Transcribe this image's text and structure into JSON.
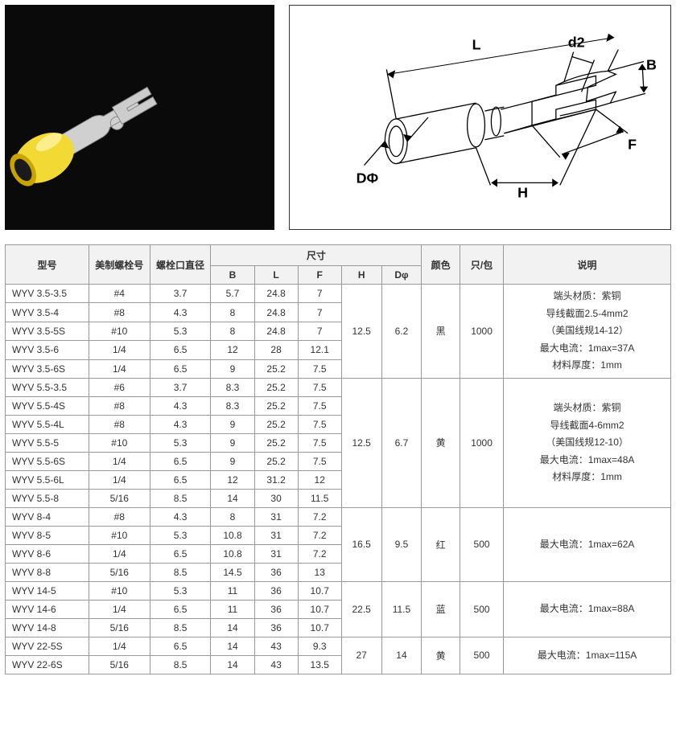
{
  "photo": {
    "bg": "#0a0a0a",
    "body_color": "#f2d933",
    "metal_color": "#d8d8d8",
    "highlight": "#ffffff"
  },
  "diagram": {
    "stroke": "#000000",
    "labels": {
      "L": "L",
      "d2": "d2",
      "B": "B",
      "F": "F",
      "H": "H",
      "D": "DΦ"
    },
    "fontsize": 16
  },
  "table": {
    "headers": {
      "model": "型号",
      "screw_us": "美制螺栓号",
      "bolt_dia": "螺栓口直径",
      "dims": "尺寸",
      "B": "B",
      "L": "L",
      "F": "F",
      "H": "H",
      "Dphi": "Dφ",
      "color": "颜色",
      "perpack": "只/包",
      "desc": "说明"
    },
    "col_widths": {
      "model": 96,
      "screw": 70,
      "bolt": 70,
      "B": 50,
      "L": 50,
      "F": 50,
      "H": 46,
      "Dphi": 46,
      "color": 44,
      "pack": 50,
      "desc": 192
    },
    "groups": [
      {
        "H": "12.5",
        "Dphi": "6.2",
        "color": "黑",
        "pack": "1000",
        "desc": [
          "端头材质：紫铜",
          "导线截面2.5-4mm2",
          "（美国线规14-12）",
          "最大电流：1max=37A",
          "材料厚度：1mm"
        ],
        "rows": [
          {
            "model": "WYV 3.5-3.5",
            "screw": "#4",
            "bolt": "3.7",
            "B": "5.7",
            "L": "24.8",
            "F": "7"
          },
          {
            "model": "WYV 3.5-4",
            "screw": "#8",
            "bolt": "4.3",
            "B": "8",
            "L": "24.8",
            "F": "7"
          },
          {
            "model": "WYV 3.5-5S",
            "screw": "#10",
            "bolt": "5.3",
            "B": "8",
            "L": "24.8",
            "F": "7"
          },
          {
            "model": "WYV 3.5-6",
            "screw": "1/4",
            "bolt": "6.5",
            "B": "12",
            "L": "28",
            "F": "12.1"
          },
          {
            "model": "WYV 3.5-6S",
            "screw": "1/4",
            "bolt": "6.5",
            "B": "9",
            "L": "25.2",
            "F": "7.5"
          }
        ]
      },
      {
        "H": "12.5",
        "Dphi": "6.7",
        "color": "黄",
        "pack": "1000",
        "desc": [
          "端头材质：紫铜",
          "导线截面4-6mm2",
          "（美国线规12-10）",
          "最大电流：1max=48A",
          "材料厚度：1mm"
        ],
        "rows": [
          {
            "model": "WYV 5.5-3.5",
            "screw": "#6",
            "bolt": "3.7",
            "B": "8.3",
            "L": "25.2",
            "F": "7.5"
          },
          {
            "model": "WYV 5.5-4S",
            "screw": "#8",
            "bolt": "4.3",
            "B": "8.3",
            "L": "25.2",
            "F": "7.5"
          },
          {
            "model": "WYV 5.5-4L",
            "screw": "#8",
            "bolt": "4.3",
            "B": "9",
            "L": "25.2",
            "F": "7.5"
          },
          {
            "model": "WYV 5.5-5",
            "screw": "#10",
            "bolt": "5.3",
            "B": "9",
            "L": "25.2",
            "F": "7.5"
          },
          {
            "model": "WYV 5.5-6S",
            "screw": "1/4",
            "bolt": "6.5",
            "B": "9",
            "L": "25.2",
            "F": "7.5"
          },
          {
            "model": "WYV 5.5-6L",
            "screw": "1/4",
            "bolt": "6.5",
            "B": "12",
            "L": "31.2",
            "F": "12"
          },
          {
            "model": "WYV 5.5-8",
            "screw": "5/16",
            "bolt": "8.5",
            "B": "14",
            "L": "30",
            "F": "11.5"
          }
        ]
      },
      {
        "H": "16.5",
        "Dphi": "9.5",
        "color": "红",
        "pack": "500",
        "desc": [
          "最大电流：1max=62A"
        ],
        "rows": [
          {
            "model": "WYV 8-4",
            "screw": "#8",
            "bolt": "4.3",
            "B": "8",
            "L": "31",
            "F": "7.2"
          },
          {
            "model": "WYV 8-5",
            "screw": "#10",
            "bolt": "5.3",
            "B": "10.8",
            "L": "31",
            "F": "7.2"
          },
          {
            "model": "WYV 8-6",
            "screw": "1/4",
            "bolt": "6.5",
            "B": "10.8",
            "L": "31",
            "F": "7.2"
          },
          {
            "model": "WYV 8-8",
            "screw": "5/16",
            "bolt": "8.5",
            "B": "14.5",
            "L": "36",
            "F": "13"
          }
        ]
      },
      {
        "H": "22.5",
        "Dphi": "11.5",
        "color": "蓝",
        "pack": "500",
        "desc": [
          "最大电流：1max=88A"
        ],
        "rows": [
          {
            "model": "WYV 14-5",
            "screw": "#10",
            "bolt": "5.3",
            "B": "11",
            "L": "36",
            "F": "10.7"
          },
          {
            "model": "WYV 14-6",
            "screw": "1/4",
            "bolt": "6.5",
            "B": "11",
            "L": "36",
            "F": "10.7"
          },
          {
            "model": "WYV 14-8",
            "screw": "5/16",
            "bolt": "8.5",
            "B": "14",
            "L": "36",
            "F": "10.7"
          }
        ]
      },
      {
        "H": "27",
        "Dphi": "14",
        "color": "黄",
        "pack": "500",
        "desc": [
          "最大电流：1max=115A"
        ],
        "rows": [
          {
            "model": "WYV 22-5S",
            "screw": "1/4",
            "bolt": "6.5",
            "B": "14",
            "L": "43",
            "F": "9.3"
          },
          {
            "model": "WYV 22-6S",
            "screw": "5/16",
            "bolt": "8.5",
            "B": "14",
            "L": "43",
            "F": "13.5"
          }
        ]
      }
    ]
  }
}
